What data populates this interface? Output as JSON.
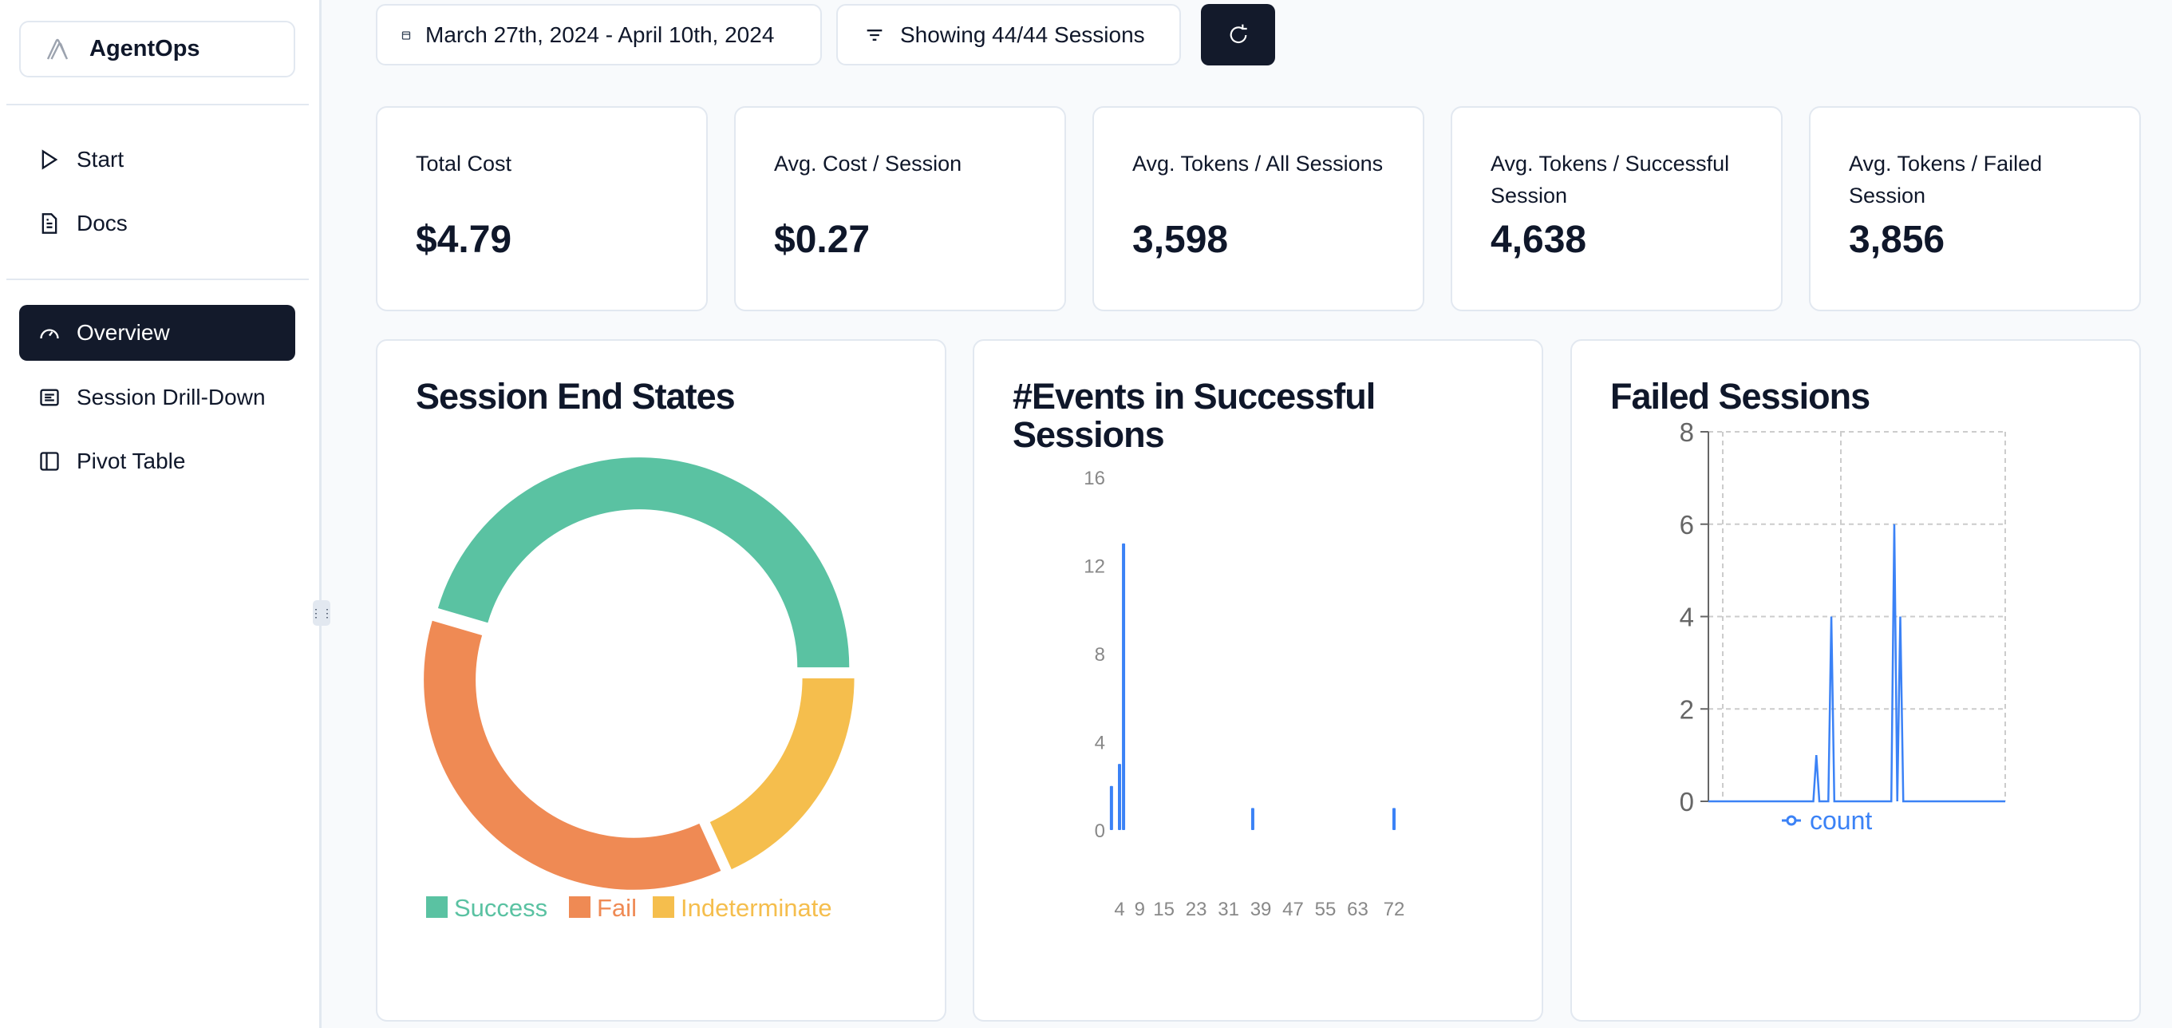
{
  "sidebar": {
    "brand": "AgentOps",
    "items": [
      {
        "label": "Start",
        "icon": "play-icon"
      },
      {
        "label": "Docs",
        "icon": "document-icon"
      },
      {
        "label": "Overview",
        "icon": "gauge-icon",
        "active": true
      },
      {
        "label": "Session Drill-Down",
        "icon": "list-icon"
      },
      {
        "label": "Pivot Table",
        "icon": "panel-icon"
      }
    ]
  },
  "toolbar": {
    "date_range": "March 27th, 2024 - April 10th, 2024",
    "filter_label": "Showing 44/44 Sessions",
    "refresh_icon": "refresh-icon"
  },
  "stats": [
    {
      "label": "Total Cost",
      "value": "$4.79"
    },
    {
      "label": "Avg. Cost / Session",
      "value": "$0.27"
    },
    {
      "label": "Avg. Tokens / All Sessions",
      "value": "3,598"
    },
    {
      "label": "Avg. Tokens / Successful Session",
      "value": "4,638"
    },
    {
      "label": "Avg. Tokens / Failed Session",
      "value": "3,856"
    }
  ],
  "colors": {
    "success": "#5ac2a2",
    "fail": "#ef8a54",
    "indeterminate": "#f5be4d",
    "series": "#3b82f6",
    "dark": "#131a2b"
  },
  "chart_data": [
    {
      "type": "pie",
      "title": "Session End States",
      "categories": [
        "Success",
        "Fail",
        "Indeterminate"
      ],
      "values": [
        20,
        16,
        8
      ],
      "legend": "bottom"
    },
    {
      "type": "bar",
      "title": "#Events in Successful Sessions",
      "x": [
        2,
        4,
        5,
        37,
        72
      ],
      "values": [
        2,
        3,
        13,
        1,
        1
      ],
      "xticks": [
        4,
        9,
        15,
        23,
        31,
        39,
        47,
        55,
        63,
        72
      ],
      "yticks": [
        0,
        4,
        8,
        12,
        16
      ],
      "xlim": [
        1,
        73
      ],
      "ylim": [
        0,
        16
      ],
      "grid": false
    },
    {
      "type": "line",
      "title": "Failed Sessions",
      "series": [
        {
          "name": "count",
          "values": [
            0,
            0,
            0,
            0,
            0,
            0,
            0,
            0,
            0,
            0,
            0,
            0,
            0,
            0,
            0,
            0,
            0,
            0,
            0,
            0,
            0,
            0,
            0,
            0,
            0,
            0,
            0,
            0,
            0,
            0,
            0,
            0,
            0,
            0,
            0,
            0,
            1,
            0,
            0,
            0,
            0,
            4,
            0,
            0,
            0,
            0,
            0,
            0,
            0,
            0,
            0,
            0,
            0,
            0,
            0,
            0,
            0,
            0,
            0,
            0,
            0,
            0,
            6,
            0,
            4,
            0,
            0,
            0,
            0,
            0,
            0,
            0,
            0,
            0,
            0,
            0,
            0,
            0,
            0,
            0,
            0,
            0,
            0,
            0,
            0,
            0,
            0,
            0,
            0,
            0,
            0,
            0,
            0,
            0,
            0,
            0,
            0,
            0,
            0,
            0
          ]
        }
      ],
      "yticks": [
        0,
        2,
        4,
        6,
        8
      ],
      "ylim": [
        0,
        8
      ],
      "grid": true,
      "legend": "bottom"
    }
  ]
}
